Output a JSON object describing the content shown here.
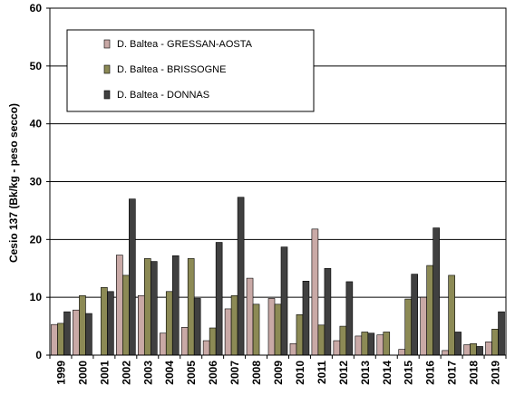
{
  "chart_data": {
    "type": "bar",
    "title": "",
    "xlabel": "",
    "ylabel": "Cesio 137 (Bk/kg - peso secco)",
    "ylim": [
      0,
      60
    ],
    "yticks": [
      0,
      10,
      20,
      30,
      40,
      50,
      60
    ],
    "grid": "horizontal",
    "legend_position": "top-left",
    "categories": [
      "1999",
      "2000",
      "2001",
      "2002",
      "2003",
      "2004",
      "2005",
      "2006",
      "2007",
      "2008",
      "2009",
      "2010",
      "2011",
      "2012",
      "2013",
      "2014",
      "2015",
      "2016",
      "2017",
      "2018",
      "2019"
    ],
    "series": [
      {
        "name": "D. Baltea - GRESSAN-AOSTA",
        "color": "#c9a9a6",
        "values": [
          5.3,
          7.8,
          0,
          17.3,
          10.3,
          3.8,
          4.8,
          2.5,
          8.0,
          13.3,
          9.8,
          2.0,
          21.8,
          2.5,
          3.3,
          3.5,
          1.0,
          10.0,
          0.8,
          1.8,
          2.3
        ]
      },
      {
        "name": "D. Baltea - BRISSOGNE",
        "color": "#8c8a55",
        "values": [
          5.5,
          10.3,
          11.7,
          13.8,
          16.7,
          11.0,
          16.7,
          4.7,
          10.3,
          8.8,
          8.8,
          7.0,
          5.2,
          5.0,
          4.0,
          4.0,
          9.7,
          15.5,
          13.8,
          2.0,
          4.5
        ]
      },
      {
        "name": "D. Baltea - DONNAS",
        "color": "#404040",
        "values": [
          7.5,
          7.2,
          11.0,
          27.0,
          16.2,
          17.2,
          9.8,
          19.5,
          27.3,
          0,
          18.7,
          12.8,
          15.0,
          12.7,
          3.8,
          0,
          14.0,
          22.0,
          4.0,
          1.5,
          7.5
        ]
      }
    ]
  }
}
